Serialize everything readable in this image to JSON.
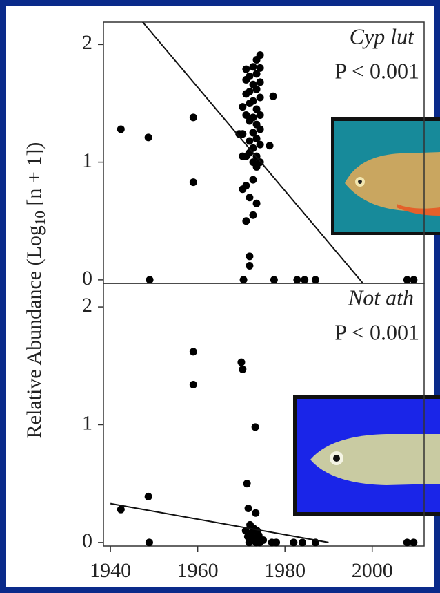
{
  "chart_data": [
    {
      "type": "scatter",
      "y_label": {
        "main": "Relative Abundance (Log",
        "sub": "10",
        "rest": " [n + 1])"
      },
      "annotation": "Cyp lut",
      "p_value": "P < 0.001",
      "xlim": [
        1938.4,
        2011.9
      ],
      "ylim": [
        -0.03,
        2.19
      ],
      "yticks": [
        0,
        1,
        2
      ],
      "color": "#000000",
      "x": [
        1942.4,
        1948.7,
        1959,
        1959,
        1969.5,
        1970.3,
        1970.3,
        1970.3,
        1970.3,
        1971.1,
        1971.1,
        1971.1,
        1971.1,
        1971.1,
        1971.1,
        1971.1,
        1971.9,
        1971.9,
        1971.9,
        1971.9,
        1971.9,
        1971.9,
        1971.9,
        1971.9,
        1971.9,
        1972.7,
        1972.7,
        1972.7,
        1972.7,
        1972.7,
        1972.7,
        1972.7,
        1972.7,
        1972.7,
        1973.5,
        1973.5,
        1973.5,
        1973.5,
        1973.5,
        1973.5,
        1973.5,
        1973.5,
        1973.5,
        1974.3,
        1974.3,
        1974.3,
        1974.3,
        1974.3,
        1974.3,
        1974.3,
        1974.3,
        1976.5,
        1977.3,
        1949,
        1970.5,
        1977.5,
        1982.8,
        1984.5,
        1987,
        2008,
        2009.5
      ],
      "values": [
        1.28,
        1.21,
        1.38,
        0.83,
        1.24,
        1.47,
        1.24,
        1.05,
        0.77,
        1.79,
        1.7,
        1.58,
        1.4,
        1.05,
        0.8,
        0.5,
        1.73,
        1.6,
        1.5,
        1.35,
        1.18,
        1.08,
        0.7,
        0.2,
        0.12,
        1.81,
        1.66,
        1.52,
        1.38,
        1.25,
        1.12,
        1.0,
        0.85,
        0.55,
        1.87,
        1.75,
        1.62,
        1.45,
        1.32,
        1.2,
        1.05,
        0.96,
        0.65,
        1.91,
        1.8,
        1.68,
        1.55,
        1.4,
        1.28,
        1.15,
        1.0,
        1.14,
        1.56,
        0,
        0,
        0,
        0,
        0,
        0,
        0,
        0
      ],
      "fit": {
        "x": [
          1947.4,
          1997.9
        ],
        "y": [
          2.19,
          -0.03
        ]
      }
    },
    {
      "type": "scatter",
      "annotation": "Not ath",
      "p_value": "P < 0.001",
      "xlim": [
        1938.4,
        2011.9
      ],
      "ylim": [
        -0.03,
        2.2
      ],
      "yticks": [
        0,
        1,
        2
      ],
      "xticks": [
        1940,
        1960,
        1980,
        2000
      ],
      "color": "#000000",
      "x": [
        1942.4,
        1948.7,
        1948.9,
        1959,
        1959,
        1970,
        1970.3,
        1973.2,
        1971.3,
        1971.6,
        1973.3,
        1971,
        1971.5,
        1972,
        1972.4,
        1972.8,
        1973.2,
        1973.6,
        1974,
        1974.4,
        1971.8,
        1972.6,
        1973.4,
        1974.2,
        1975,
        1977,
        1978,
        1982,
        1984,
        1987,
        2008,
        2009.5
      ],
      "values": [
        0.28,
        0.39,
        0,
        1.62,
        1.34,
        1.53,
        1.47,
        0.98,
        0.5,
        0.29,
        0.25,
        0.1,
        0.05,
        0.15,
        0.08,
        0.12,
        0.03,
        0.1,
        0.06,
        0.02,
        0.0,
        0.04,
        0.0,
        0.0,
        0.02,
        0,
        0,
        0,
        0,
        0,
        0,
        0
      ],
      "fit": {
        "x": [
          1940,
          1990
        ],
        "y": [
          0.33,
          0
        ]
      }
    }
  ]
}
